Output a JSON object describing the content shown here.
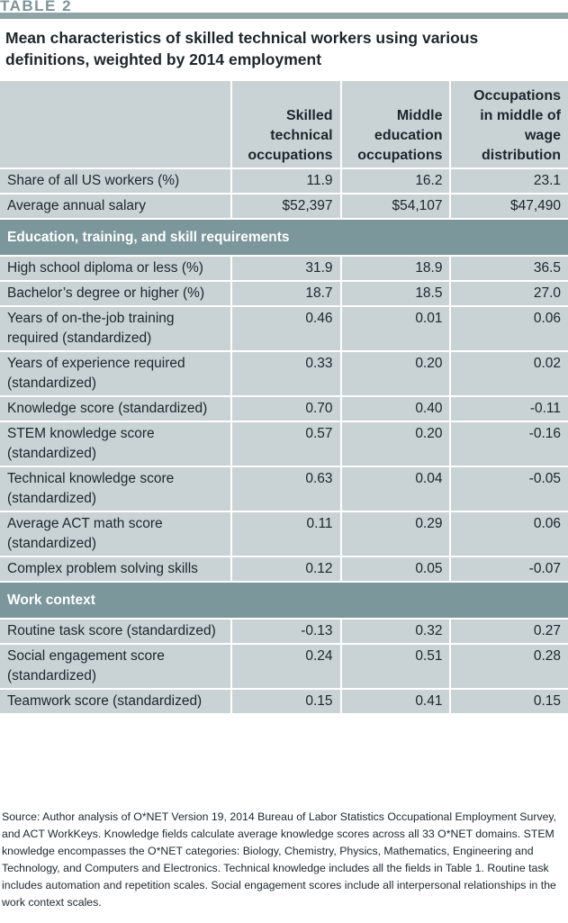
{
  "label": "TABLE 2",
  "title": "Mean characteristics of skilled technical workers using various definitions, weighted by 2014 employment",
  "columns": [
    "",
    "Skilled technical occupations",
    "Middle education occupations",
    "Occupations in middle of wage distribution"
  ],
  "rows": [
    {
      "type": "row",
      "label": "Share of all US workers (%)",
      "values": [
        "11.9",
        "16.2",
        "23.1"
      ]
    },
    {
      "type": "row",
      "label": "Average annual salary",
      "values": [
        "$52,397",
        "$54,107",
        "$47,490"
      ]
    },
    {
      "type": "section",
      "label": "Education, training, and skill requirements"
    },
    {
      "type": "row",
      "label": "High school diploma or less (%)",
      "values": [
        "31.9",
        "18.9",
        "36.5"
      ]
    },
    {
      "type": "row",
      "label": "Bachelor’s degree or higher (%)",
      "values": [
        "18.7",
        "18.5",
        "27.0"
      ]
    },
    {
      "type": "row",
      "label": "Years of on-the-job training required (standardized)",
      "values": [
        "0.46",
        "0.01",
        "0.06"
      ]
    },
    {
      "type": "row",
      "label": "Years of experience required (standardized)",
      "values": [
        "0.33",
        "0.20",
        "0.02"
      ]
    },
    {
      "type": "row",
      "label": "Knowledge score (standardized)",
      "values": [
        "0.70",
        "0.40",
        "-0.11"
      ]
    },
    {
      "type": "row",
      "label": "STEM knowledge score (standardized)",
      "values": [
        "0.57",
        "0.20",
        "-0.16"
      ]
    },
    {
      "type": "row",
      "label": "Technical knowledge score (standardized)",
      "values": [
        "0.63",
        "0.04",
        "-0.05"
      ]
    },
    {
      "type": "row",
      "label": "Average ACT math score (standardized)",
      "values": [
        "0.11",
        "0.29",
        "0.06"
      ]
    },
    {
      "type": "row",
      "label": "Complex problem solving skills",
      "values": [
        "0.12",
        "0.05",
        "-0.07"
      ]
    },
    {
      "type": "section",
      "label": "Work context"
    },
    {
      "type": "row",
      "label": "Routine task score (standardized)",
      "values": [
        "-0.13",
        "0.32",
        "0.27"
      ]
    },
    {
      "type": "row",
      "label": "Social engagement score (standardized)",
      "values": [
        "0.24",
        "0.51",
        "0.28"
      ]
    },
    {
      "type": "row",
      "label": "Teamwork score (standardized)",
      "values": [
        "0.15",
        "0.41",
        "0.15"
      ]
    }
  ],
  "source": "Source: Author analysis of O*NET Version 19, 2014 Bureau of Labor Statistics Occupational Employment Survey, and ACT WorkKeys. Knowledge fields calculate average knowledge scores across all 33 O*NET domains. STEM knowledge encompasses the O*NET categories: Biology, Chemistry, Physics, Mathematics, Engineering and Technology, and Computers and Electronics. Technical knowledge includes all the fields in Table 1. Routine task includes automation and repetition scales. Social engagement scores include all interpersonal relationships in the work context scales."
}
